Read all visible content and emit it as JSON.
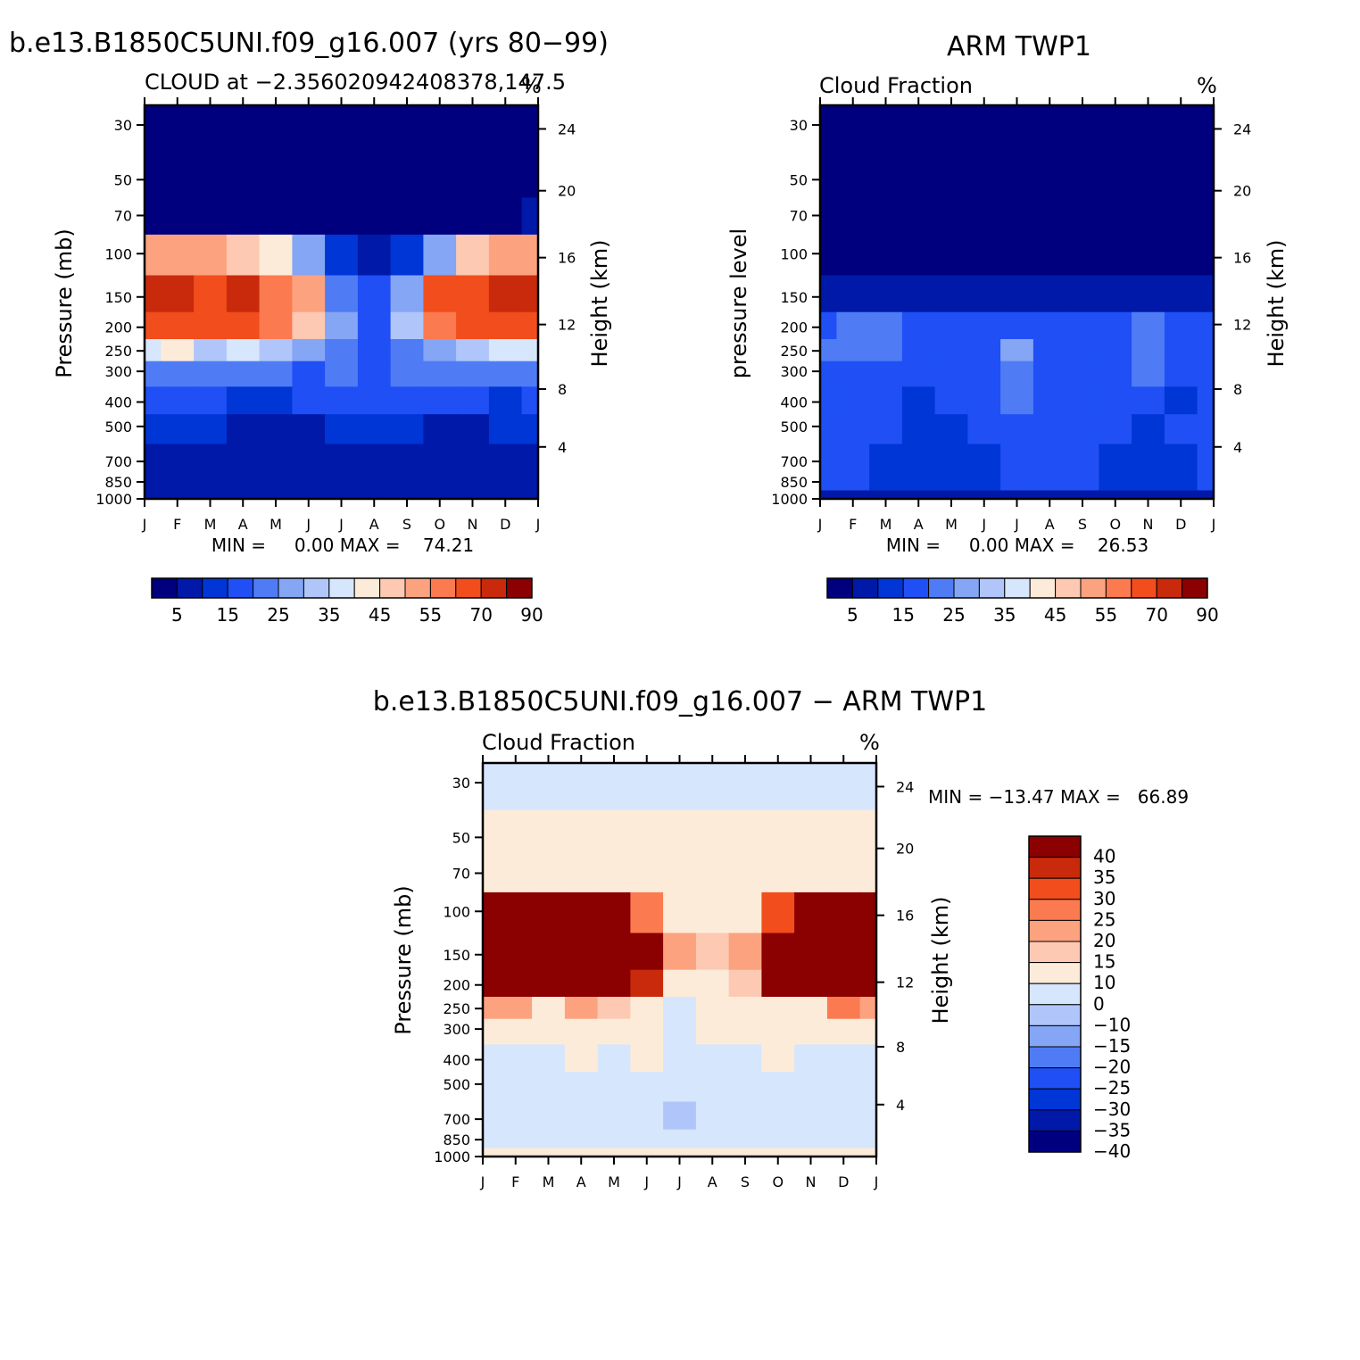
{
  "colors": {
    "levels15": [
      "#00007f",
      "#0019a8",
      "#0036d6",
      "#1f4ff5",
      "#4f7cf5",
      "#85a5f5",
      "#b0c6fa",
      "#d6e6fc",
      "#fdebd9",
      "#fdc9b2",
      "#fca27f",
      "#fb7a4f",
      "#f24d1c",
      "#c82a0b",
      "#8b0000"
    ],
    "diff15": [
      "#00007f",
      "#0019a8",
      "#0036d6",
      "#1f4ff5",
      "#4f7cf5",
      "#85a5f5",
      "#b0c6fa",
      "#d6e6fc",
      "#fdebd9",
      "#fdc9b2",
      "#fca27f",
      "#fb7a4f",
      "#f24d1c",
      "#c82a0b",
      "#8b0000"
    ]
  },
  "charts": {
    "model": {
      "header": "b.e13.B1850C5UNI.f09_g16.007 (yrs 80−99)",
      "left_title": "CLOUD at −2.356020942408378,147.5",
      "right_title": "%",
      "ylabel": "Pressure (mb)",
      "y2label": "Height (km)",
      "stats": "MIN =     0.00 MAX =    74.21"
    },
    "obs": {
      "header": "ARM TWP1",
      "left_title": "Cloud Fraction",
      "right_title": "%",
      "ylabel": "pressure level",
      "y2label": "Height (km)",
      "stats": "MIN =     0.00 MAX =    26.53"
    },
    "diff": {
      "header": "b.e13.B1850C5UNI.f09_g16.007 − ARM TWP1",
      "left_title": "Cloud Fraction",
      "right_title": "%",
      "ylabel": "Pressure (mb)",
      "y2label": "Height (km)",
      "stats": "MIN = −13.47 MAX =   66.89"
    }
  },
  "chart_data": [
    {
      "type": "heatmap",
      "name_text": "CLOUD at −2.356020942408378,147.5",
      "x_ticks": [
        "J",
        "F",
        "M",
        "A",
        "M",
        "J",
        "J",
        "A",
        "S",
        "O",
        "N",
        "D",
        "J"
      ],
      "y_ticks": [
        "30",
        "50",
        "70",
        "100",
        "150",
        "200",
        "250",
        "300",
        "400",
        "500",
        "700",
        "850",
        "1000"
      ],
      "y2_ticks": [
        "24",
        "20",
        "16",
        "12",
        "8",
        "4"
      ],
      "colorbar_labels": [
        "5",
        "15",
        "25",
        "35",
        "45",
        "55",
        "70",
        "90"
      ],
      "levels": [
        0,
        5,
        10,
        15,
        20,
        25,
        30,
        35,
        40,
        45,
        50,
        55,
        60,
        70,
        80,
        90
      ],
      "min": 0.0,
      "max": 74.21,
      "values": [
        [
          0,
          0,
          0,
          0,
          0,
          0,
          0,
          0,
          0,
          0,
          0,
          0,
          0
        ],
        [
          0,
          0,
          0,
          0,
          0,
          0,
          0,
          0,
          0,
          0,
          0,
          0,
          0
        ],
        [
          4,
          3,
          3,
          2,
          2,
          1,
          1,
          1,
          1,
          1,
          2,
          3,
          5
        ],
        [
          50,
          52,
          50,
          48,
          40,
          25,
          10,
          6,
          10,
          28,
          45,
          50,
          50
        ],
        [
          70,
          74,
          66,
          72,
          58,
          50,
          20,
          18,
          25,
          62,
          66,
          70,
          70
        ],
        [
          62,
          65,
          60,
          62,
          55,
          48,
          25,
          18,
          30,
          55,
          66,
          66,
          62
        ],
        [
          35,
          40,
          30,
          35,
          30,
          25,
          22,
          18,
          22,
          25,
          30,
          38,
          35
        ],
        [
          20,
          22,
          20,
          22,
          20,
          18,
          20,
          18,
          20,
          20,
          22,
          22,
          20
        ],
        [
          15,
          15,
          15,
          12,
          12,
          15,
          15,
          15,
          15,
          15,
          15,
          12,
          15
        ],
        [
          10,
          10,
          10,
          5,
          5,
          8,
          10,
          10,
          10,
          8,
          8,
          10,
          10
        ],
        [
          5,
          5,
          5,
          5,
          5,
          5,
          5,
          5,
          5,
          5,
          5,
          5,
          5
        ],
        [
          5,
          5,
          5,
          5,
          5,
          5,
          5,
          5,
          5,
          5,
          5,
          5,
          5
        ],
        [
          5,
          5,
          5,
          5,
          5,
          5,
          5,
          5,
          5,
          5,
          5,
          5,
          5
        ]
      ]
    },
    {
      "type": "heatmap",
      "name_text": "Cloud Fraction",
      "x_ticks": [
        "J",
        "F",
        "M",
        "A",
        "M",
        "J",
        "J",
        "A",
        "S",
        "O",
        "N",
        "D",
        "J"
      ],
      "y_ticks": [
        "30",
        "50",
        "70",
        "100",
        "150",
        "200",
        "250",
        "300",
        "400",
        "500",
        "700",
        "850",
        "1000"
      ],
      "y2_ticks": [
        "24",
        "20",
        "16",
        "12",
        "8",
        "4"
      ],
      "colorbar_labels": [
        "5",
        "15",
        "25",
        "35",
        "45",
        "55",
        "70",
        "90"
      ],
      "levels": [
        0,
        5,
        10,
        15,
        20,
        25,
        30,
        35,
        40,
        45,
        50,
        55,
        60,
        70,
        80,
        90
      ],
      "min": 0.0,
      "max": 26.53,
      "values": [
        [
          0,
          0,
          0,
          0,
          0,
          0,
          0,
          0,
          0,
          0,
          0,
          0,
          0
        ],
        [
          0,
          0,
          0,
          0,
          0,
          0,
          0,
          0,
          0,
          0,
          0,
          0,
          0
        ],
        [
          0,
          0,
          0,
          0,
          0,
          0,
          0,
          0,
          0,
          0,
          0,
          0,
          0
        ],
        [
          3,
          4,
          4,
          3,
          3,
          2,
          2,
          2,
          2,
          2,
          3,
          3,
          3
        ],
        [
          7,
          8,
          7,
          6,
          6,
          6,
          5,
          5,
          6,
          6,
          7,
          6,
          6
        ],
        [
          19,
          20,
          20,
          15,
          15,
          16,
          17,
          16,
          16,
          17,
          20,
          18,
          19
        ],
        [
          20,
          22,
          21,
          16,
          16,
          17,
          25,
          19,
          16,
          18,
          23,
          18,
          18
        ],
        [
          17,
          18,
          18,
          15,
          16,
          15,
          22,
          18,
          16,
          16,
          20,
          17,
          17
        ],
        [
          16,
          16,
          16,
          12,
          15,
          15,
          20,
          17,
          16,
          15,
          16,
          14,
          16
        ],
        [
          15,
          15,
          15,
          10,
          12,
          15,
          18,
          16,
          16,
          15,
          14,
          15,
          15
        ],
        [
          15,
          15,
          12,
          10,
          10,
          14,
          16,
          15,
          15,
          12,
          10,
          13,
          15
        ],
        [
          15,
          15,
          12,
          10,
          12,
          14,
          15,
          15,
          15,
          13,
          12,
          14,
          15
        ],
        [
          5,
          5,
          5,
          5,
          5,
          5,
          5,
          5,
          5,
          5,
          5,
          5,
          5
        ]
      ]
    },
    {
      "type": "heatmap",
      "name_text": "Cloud Fraction",
      "x_ticks": [
        "J",
        "F",
        "M",
        "A",
        "M",
        "J",
        "J",
        "A",
        "S",
        "O",
        "N",
        "D",
        "J"
      ],
      "y_ticks": [
        "30",
        "50",
        "70",
        "100",
        "150",
        "200",
        "250",
        "300",
        "400",
        "500",
        "700",
        "850",
        "1000"
      ],
      "y2_ticks": [
        "24",
        "20",
        "16",
        "12",
        "8",
        "4"
      ],
      "colorbar_labels": [
        "40",
        "35",
        "30",
        "25",
        "20",
        "15",
        "10",
        "0",
        "−10",
        "−15",
        "−20",
        "−25",
        "−30",
        "−35",
        "−40"
      ],
      "levels": [
        -45,
        -40,
        -35,
        -30,
        -25,
        -20,
        -15,
        -10,
        0,
        10,
        15,
        20,
        25,
        30,
        35,
        40,
        45
      ],
      "min": -13.47,
      "max": 66.89,
      "values": [
        [
          -2,
          -2,
          -2,
          -2,
          -2,
          -2,
          -2,
          -2,
          -2,
          -2,
          -2,
          -2,
          -2
        ],
        [
          3,
          3,
          3,
          3,
          3,
          3,
          3,
          3,
          3,
          3,
          3,
          3,
          3
        ],
        [
          4,
          3,
          3,
          3,
          3,
          3,
          3,
          3,
          3,
          3,
          4,
          4,
          5
        ],
        [
          50,
          48,
          46,
          45,
          37,
          23,
          8,
          5,
          8,
          26,
          42,
          47,
          47
        ],
        [
          63,
          66,
          59,
          66,
          52,
          44,
          15,
          13,
          19,
          56,
          59,
          64,
          64
        ],
        [
          43,
          45,
          40,
          47,
          40,
          32,
          8,
          2,
          14,
          38,
          46,
          48,
          43
        ],
        [
          15,
          18,
          9,
          19,
          14,
          8,
          -3,
          0,
          6,
          7,
          7,
          20,
          17
        ],
        [
          3,
          4,
          2,
          7,
          4,
          3,
          -2,
          0,
          4,
          4,
          2,
          5,
          3
        ],
        [
          -1,
          -1,
          -1,
          0,
          -3,
          0,
          -5,
          -2,
          -1,
          0,
          -1,
          -2,
          -1
        ],
        [
          -5,
          -5,
          -5,
          -5,
          -7,
          -7,
          -8,
          -6,
          -6,
          -7,
          -6,
          -5,
          -5
        ],
        [
          -10,
          -10,
          -7,
          -5,
          -5,
          -9,
          -11,
          -10,
          -10,
          -7,
          -5,
          -8,
          -10
        ],
        [
          -10,
          -10,
          -7,
          -5,
          -7,
          -9,
          -10,
          -10,
          -10,
          -8,
          -7,
          -9,
          -10
        ],
        [
          0,
          0,
          0,
          0,
          0,
          0,
          0,
          0,
          0,
          0,
          0,
          0,
          0
        ]
      ]
    }
  ]
}
